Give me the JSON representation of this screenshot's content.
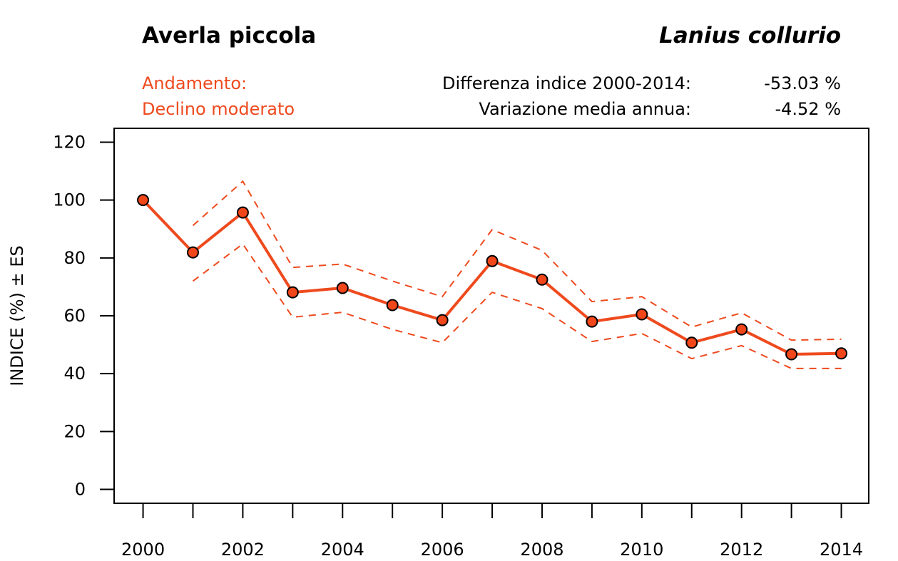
{
  "header": {
    "common_name": "Averla piccola",
    "scientific_name": "Lanius collurio",
    "trend_title": "Andamento:",
    "trend_value": "Declino moderato",
    "stats": [
      {
        "label": "Differenza indice 2000-2014:",
        "value": "-53.03 %"
      },
      {
        "label": "Variazione media annua:",
        "value": "-4.52 %"
      }
    ]
  },
  "colors": {
    "accent": "#ee4a1e",
    "marker_fill": "#f0461a",
    "axis": "#000000"
  },
  "chart_data": {
    "type": "line",
    "title": "Averla piccola",
    "xlabel": "",
    "ylabel": "INDICE (%) ± ES",
    "x": [
      2000,
      2001,
      2002,
      2003,
      2004,
      2005,
      2006,
      2007,
      2008,
      2009,
      2010,
      2011,
      2012,
      2013,
      2014
    ],
    "x_tick_labels": [
      "2000",
      "2002",
      "2004",
      "2006",
      "2008",
      "2010",
      "2012",
      "2014"
    ],
    "x_tick_values": [
      2000,
      2002,
      2004,
      2006,
      2008,
      2010,
      2012,
      2014
    ],
    "y_ticks": [
      0,
      20,
      40,
      60,
      80,
      100,
      120
    ],
    "xlim": [
      1999.42,
      2014.55
    ],
    "ylim": [
      -4.8,
      124.8
    ],
    "grid": false,
    "series": [
      {
        "name": "Indice",
        "style": "solid-with-markers",
        "values": [
          100,
          81.9,
          95.7,
          68.1,
          69.6,
          63.7,
          58.5,
          78.9,
          72.5,
          58.0,
          60.5,
          50.7,
          55.3,
          46.7,
          47.0
        ]
      },
      {
        "name": "Indice + ES",
        "style": "dashed",
        "values": [
          null,
          91.2,
          106.5,
          76.7,
          77.9,
          72.0,
          66.6,
          89.8,
          82.6,
          64.9,
          66.6,
          56.1,
          61.0,
          51.6,
          51.9
        ]
      },
      {
        "name": "Indice - ES",
        "style": "dashed",
        "values": [
          null,
          72.0,
          84.8,
          59.5,
          61.2,
          55.3,
          50.7,
          68.1,
          62.5,
          51.1,
          53.9,
          45.2,
          49.7,
          41.8,
          41.8
        ]
      }
    ]
  }
}
